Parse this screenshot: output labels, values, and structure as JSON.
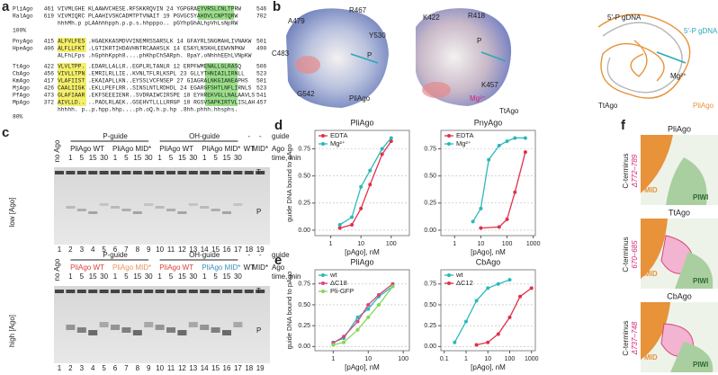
{
  "panels": {
    "a": {
      "label": "a",
      "groups": [
        {
          "rows": [
            {
              "name": "PliAgo",
              "start": 461,
              "seq": "VIVMLGHE KLAAWVCHESE.RFSKKRQVIN 24 YGPGRAEYVRSLCNLTPRW",
              "end": 546
            },
            {
              "name": "RalAgo",
              "start": 619,
              "seq": "VIVMIQRC PLAAHIVSKCADMTPTVNAIT 19 PGVGCSYAHDVLCNPTQRW",
              "end": 702
            }
          ],
          "consensus": "hhhMh.p  pLAAhhhpph.p.p.s.hhpppo.. pGYhpGhALhpVhLsNpRW",
          "pct": "100%"
        },
        {
          "rows": [
            {
              "name": "PnyAgo",
              "start": 415,
              "seq": "ALFVLFES .HGAEKKASMDVVINEMRSSARSLK 14 GFAYRLSNGMAHLIVNAKW",
              "end": 501
            },
            {
              "name": "HpeAgo",
              "start": 406,
              "seq": "ALFLLFKT .LGTIKRTIHDAVHNTRCAAHSLK 14 ESAYLNSKHLEEWVNPKW",
              "end": 490
            }
          ],
          "consensus": "ALFhLFps .hGphhKpph8....phKhpChSARph. 8paY.oNhhhEEhLVNpKW"
        },
        {
          "rows": [
            {
              "name": "TtAgo",
              "start": 422,
              "seq": "VLVLTPP. .EDARLLALLR..EGPLRLTANLR 12 ERPFWMENALLGLRASQ",
              "end": 506
            },
            {
              "name": "CbAgo",
              "start": 456,
              "seq": "VIVLLTPN .EMRILRLLIE..KVNLTFLRLKSPL 23 GLLYTHNIAILIRNLL",
              "end": 523
            },
            {
              "name": "KmAgo",
              "start": 417,
              "seq": "VLAFIIST .EKAIAPLLKN..EYSSLVCFNSEP 27 GIAGRALNKGIANEAPHS",
              "end": 501
            },
            {
              "name": "MjAgo",
              "start": 426,
              "seq": "CAALIIGK .EKLLPEFLRR..SINSLNTLRDHDL 24 EGARGFSHTLNFLIRNLS",
              "end": 523
            },
            {
              "name": "PfAgo",
              "start": 473,
              "seq": "GLAFIAAR .EKFSEEEIENR..SVDRAIWCIRSPE 18 EYHREKVGLLNALAAVLS",
              "end": 541
            },
            {
              "name": "MpAgo",
              "start": 372,
              "seq": "AIVLLD.. ..PADLRLAEK..GSEHVTLLLLRRGP 18 RGSVSAPKIRTVLISLAH",
              "end": 457
            }
          ],
          "consensus": "hhhhh.   p..p.hpp.hhp....ph.oQ.h.p.hp .8hh.phhh.hhsphs.",
          "pct": "80%"
        }
      ]
    },
    "b": {
      "label": "b",
      "labels": [
        "A479",
        "R467",
        "Y530",
        "C483",
        "G542",
        "PliAgo",
        "K422",
        "R418",
        "K457",
        "Mg²⁺",
        "TtAgo",
        "5'-P gDNA",
        "5'-P gDNA",
        "Mg²⁺",
        "TtAgo",
        "PliAgo",
        "P",
        "P"
      ]
    },
    "c": {
      "label": "c",
      "lanes": [
        1,
        2,
        3,
        4,
        5,
        6,
        7,
        8,
        9,
        10,
        11,
        12,
        13,
        14,
        15,
        16,
        17,
        18,
        19
      ],
      "times": [
        1,
        5,
        15,
        30
      ],
      "gels": [
        {
          "guide_row": [
            "P-guide",
            "OH-guide",
            "-",
            "-",
            "guide"
          ],
          "ago_row": [
            "no Ago",
            "PliAgo WT",
            "PliAgo MID*",
            "PliAgo WT",
            "PliAgo MID*",
            "WT",
            "MID*",
            "Ago"
          ],
          "time_label": "time, min",
          "bands": [
            "T",
            "P"
          ],
          "side": "low [Ago]"
        },
        {
          "guide_row": [
            "P-guide",
            "OH-guide",
            "-",
            "-",
            "guide"
          ],
          "ago_row": [
            "no Ago",
            "PliAgo WT",
            "PliAgo MID*",
            "PliAgo WT",
            "PliAgo MID*",
            "WT",
            "MID*",
            "Ago"
          ],
          "time_label": "time, min",
          "bands": [
            "T",
            "P"
          ],
          "side": "high [Ago]",
          "ago_colors": [
            "#222222",
            "#d6403a",
            "#e8925a",
            "#d6403a",
            "#3a8fb5",
            "#222222",
            "#222222",
            "#222222"
          ]
        }
      ]
    },
    "d": {
      "label": "d"
    },
    "e": {
      "label": "e"
    },
    "f": {
      "label": "f",
      "boxes": [
        {
          "title": "PliAgo",
          "side": "C-terminus",
          "delta": "Δ772–789",
          "domains": [
            "MID",
            "PIWI"
          ]
        },
        {
          "title": "TtAgo",
          "side": "C-terminus",
          "delta": "670–685",
          "domains": [
            "MID",
            "PIWI"
          ]
        },
        {
          "title": "CbAgo",
          "side": "C-terminus",
          "delta": "Δ737–748",
          "domains": [
            "MID",
            "PIWI"
          ]
        }
      ]
    }
  },
  "chart_data": [
    {
      "type": "scatter",
      "title": "PliAgo",
      "x_label": "[pAgo], nM",
      "y_label": "guide DNA bound to pAgo",
      "xscale": "log",
      "grid": true,
      "xlim": [
        0.3,
        400
      ],
      "xticks": [
        1,
        10,
        100
      ],
      "ylim": [
        -0.05,
        0.92
      ],
      "yticks": [
        {
          "value": 0,
          "label": "0.00"
        },
        {
          "value": 0.25,
          "label": "0.25"
        },
        {
          "value": 0.5,
          "label": "0.50"
        },
        {
          "value": 0.75,
          "label": "0.75"
        }
      ],
      "series": [
        {
          "name": "EDTA",
          "color": "#e0304a",
          "x": [
            2,
            5,
            10,
            20,
            50,
            100
          ],
          "values": [
            0.02,
            0.05,
            0.2,
            0.42,
            0.7,
            0.82
          ]
        },
        {
          "name": "Mg²⁺",
          "color": "#2bb8b8",
          "x": [
            2,
            5,
            10,
            20,
            50,
            100
          ],
          "values": [
            0.05,
            0.12,
            0.4,
            0.55,
            0.75,
            0.85
          ]
        }
      ]
    },
    {
      "type": "scatter",
      "title": "PnyAgo",
      "x_label": "[pAgo], nM",
      "xscale": "log",
      "grid": true,
      "xlim": [
        0.3,
        1200
      ],
      "xticks": [
        1,
        10,
        100,
        1000
      ],
      "ylim": [
        -0.05,
        0.92
      ],
      "yticks": [
        {
          "value": 0,
          "label": "0.00"
        },
        {
          "value": 0.25,
          "label": "0.25"
        },
        {
          "value": 0.5,
          "label": "0.50"
        },
        {
          "value": 0.75,
          "label": "0.75"
        }
      ],
      "series": [
        {
          "name": "EDTA",
          "color": "#e0304a",
          "x": [
            10,
            50,
            100,
            200,
            500
          ],
          "values": [
            0.02,
            0.03,
            0.1,
            0.35,
            0.72
          ]
        },
        {
          "name": "Mg²⁺",
          "color": "#2bb8b8",
          "x": [
            5,
            10,
            20,
            50,
            100,
            200,
            500
          ],
          "values": [
            0.08,
            0.2,
            0.65,
            0.78,
            0.82,
            0.85,
            0.85
          ]
        }
      ]
    },
    {
      "type": "scatter",
      "title": "PliAgo",
      "x_label": "[pAgo], nM",
      "y_label": "guide DNA bound to pAgo",
      "xscale": "log",
      "grid": true,
      "xlim": [
        0.3,
        150
      ],
      "xticks": [
        1,
        10,
        100
      ],
      "ylim": [
        -0.05,
        0.92
      ],
      "yticks": [
        {
          "value": 0,
          "label": "0.00"
        },
        {
          "value": 0.25,
          "label": "0.25"
        },
        {
          "value": 0.5,
          "label": "0.50"
        },
        {
          "value": 0.75,
          "label": "0.75"
        }
      ],
      "series": [
        {
          "name": "wt",
          "color": "#2bb8b8",
          "x": [
            1,
            2,
            5,
            10,
            20,
            50
          ],
          "values": [
            0.05,
            0.1,
            0.35,
            0.45,
            0.6,
            0.72
          ]
        },
        {
          "name": "ΔC18",
          "color": "#d9457f",
          "x": [
            1,
            2,
            5,
            10,
            20,
            50
          ],
          "values": [
            0.04,
            0.12,
            0.3,
            0.5,
            0.62,
            0.75
          ]
        },
        {
          "name": "Pli-GFP",
          "color": "#7ed957",
          "x": [
            1,
            2,
            5,
            10,
            20,
            50
          ],
          "values": [
            0.02,
            0.05,
            0.2,
            0.35,
            0.5,
            0.72
          ]
        }
      ]
    },
    {
      "type": "scatter",
      "title": "CbAgo",
      "x_label": "[pAgo], nM",
      "xscale": "log",
      "grid": true,
      "xlim": [
        0.07,
        1500
      ],
      "xticks": [
        0.1,
        1,
        10,
        100,
        1000
      ],
      "ylim": [
        -0.05,
        0.92
      ],
      "yticks": [
        {
          "value": 0,
          "label": "0.00"
        },
        {
          "value": 0.25,
          "label": "0.25"
        },
        {
          "value": 0.5,
          "label": "0.50"
        },
        {
          "value": 0.75,
          "label": "0.75"
        }
      ],
      "series": [
        {
          "name": "wt",
          "color": "#2bb8b8",
          "x": [
            0.3,
            1,
            3,
            10,
            30,
            100
          ],
          "values": [
            0.05,
            0.3,
            0.55,
            0.7,
            0.75,
            0.8
          ]
        },
        {
          "name": "ΔC12",
          "color": "#e0304a",
          "x": [
            3,
            10,
            30,
            100,
            300,
            1000
          ],
          "values": [
            0.02,
            0.05,
            0.15,
            0.35,
            0.6,
            0.7
          ]
        }
      ]
    }
  ]
}
